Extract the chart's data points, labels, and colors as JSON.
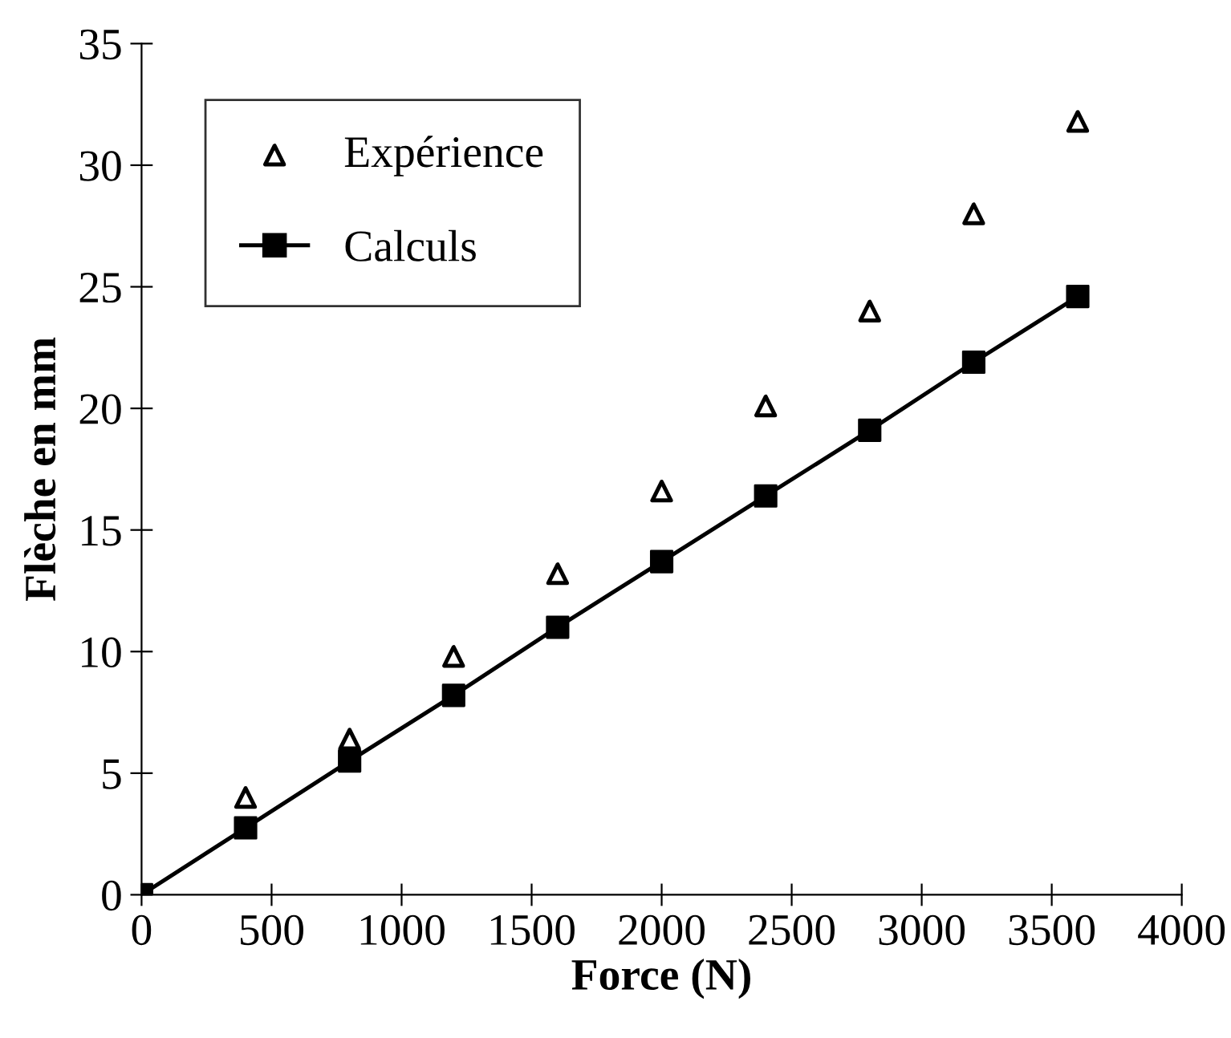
{
  "chart_data": {
    "type": "line",
    "xlabel": "Force (N)",
    "ylabel": "Flèche en mm",
    "xlim": [
      0,
      4000
    ],
    "xticks": [
      0,
      500,
      1000,
      1500,
      2000,
      2500,
      3000,
      3500,
      4000
    ],
    "ylim": [
      0,
      35
    ],
    "yticks": [
      0,
      5,
      10,
      15,
      20,
      25,
      30,
      35
    ],
    "grid": false,
    "legend": "top left",
    "series": [
      {
        "name": "Expérience",
        "type": "scatter",
        "marker": "triangle",
        "color": "#000000",
        "x": [
          400,
          800,
          1200,
          1600,
          2000,
          2400,
          2800,
          3200,
          3600
        ],
        "values": [
          4.0,
          6.4,
          9.8,
          13.2,
          16.6,
          20.1,
          24.0,
          28.0,
          31.8
        ]
      },
      {
        "name": "Calculs",
        "marker": "square",
        "line_style": "solid",
        "color": "#000000",
        "x": [
          0,
          400,
          800,
          1200,
          1600,
          2000,
          2400,
          2800,
          3200,
          3600
        ],
        "values": [
          0,
          2.75,
          5.5,
          8.2,
          11.0,
          13.7,
          16.4,
          19.1,
          21.9,
          24.6
        ]
      }
    ]
  }
}
